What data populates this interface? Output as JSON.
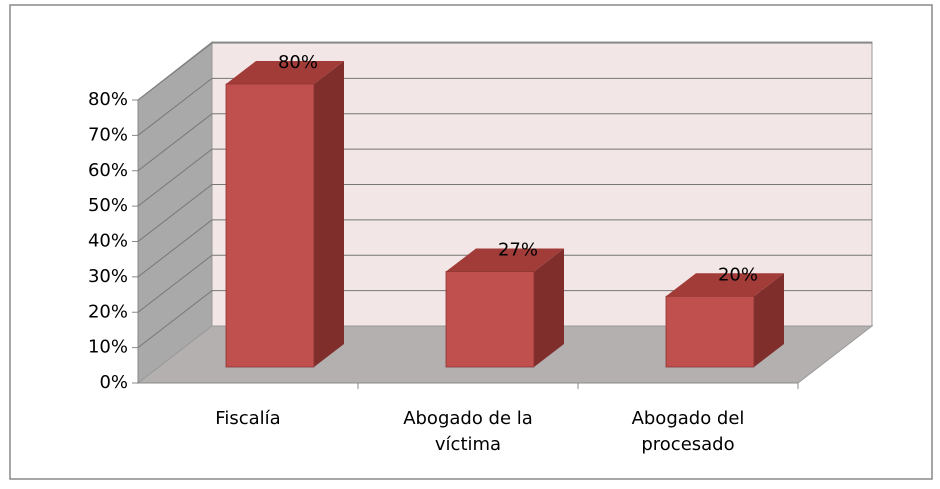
{
  "chart_data": {
    "type": "bar3d",
    "categories": [
      "Fiscalía",
      "Abogado de la víctima",
      "Abogado del procesado"
    ],
    "values": [
      80,
      27,
      20
    ],
    "value_labels": [
      "80%",
      "27%",
      "20%"
    ],
    "color": "#c0504d",
    "ylim": [
      0,
      80
    ],
    "yticks": [
      {
        "value": 0,
        "label": "0%"
      },
      {
        "value": 10,
        "label": "10%"
      },
      {
        "value": 20,
        "label": "20%"
      },
      {
        "value": 30,
        "label": "30%"
      },
      {
        "value": 40,
        "label": "40%"
      },
      {
        "value": 50,
        "label": "50%"
      },
      {
        "value": 60,
        "label": "60%"
      },
      {
        "value": 70,
        "label": "70%"
      },
      {
        "value": 80,
        "label": "80%"
      }
    ],
    "grid": true
  }
}
